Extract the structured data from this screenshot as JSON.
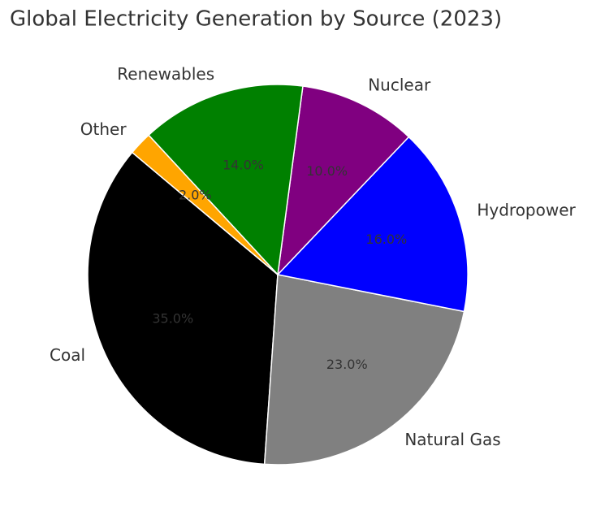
{
  "chart_data": {
    "type": "pie",
    "title": "Global Electricity Generation by Source (2023)",
    "categories": [
      "Coal",
      "Natural Gas",
      "Hydropower",
      "Nuclear",
      "Renewables",
      "Other"
    ],
    "values": [
      35,
      23,
      16,
      10,
      14,
      2
    ],
    "value_labels": [
      "35.0%",
      "23.0%",
      "16.0%",
      "10.0%",
      "14.0%",
      "2.0%"
    ],
    "colors": [
      "#000000",
      "#808080",
      "#0000ff",
      "#800080",
      "#008000",
      "#ffa500"
    ]
  }
}
